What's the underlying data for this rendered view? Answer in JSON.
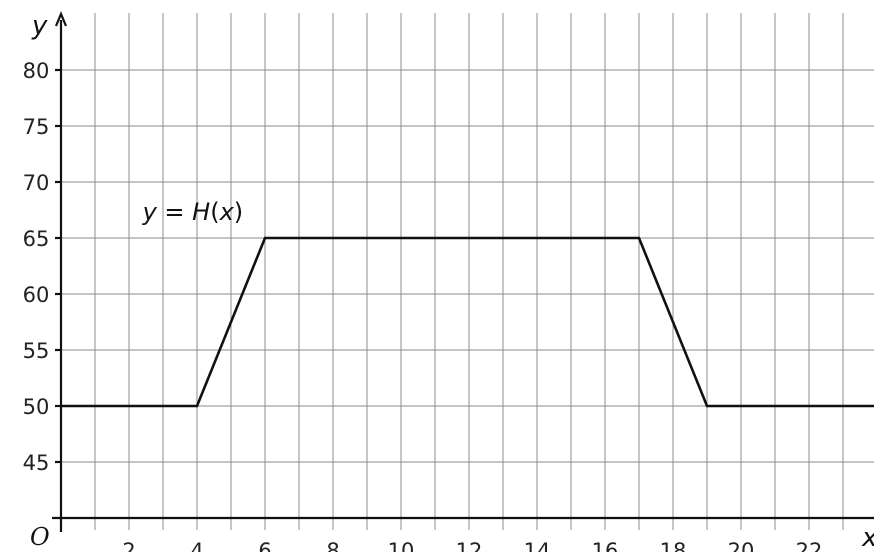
{
  "chart_data": {
    "type": "line",
    "xlabel": "x",
    "ylabel": "y",
    "origin_label": "O",
    "xlim": [
      0,
      24
    ],
    "ylim": [
      40,
      84
    ],
    "x_grid_step": 1,
    "y_grid_step": 5,
    "grid": true,
    "x_ticks": [
      2,
      4,
      6,
      8,
      10,
      12,
      14,
      16,
      18,
      20,
      22
    ],
    "y_ticks": [
      45,
      50,
      55,
      60,
      65,
      70,
      75,
      80
    ],
    "series": [
      {
        "x": [
          0,
          4,
          6,
          17,
          19,
          24
        ],
        "y": [
          50,
          50,
          65,
          65,
          50,
          50
        ]
      }
    ],
    "annotation": {
      "parts": [
        {
          "text": "y",
          "italic": true
        },
        {
          "text": " = ",
          "italic": false
        },
        {
          "text": "H",
          "italic": true
        },
        {
          "text": "(",
          "italic": false
        },
        {
          "text": "x",
          "italic": true
        },
        {
          "text": ")",
          "italic": false
        }
      ],
      "x": 2.4,
      "y": 66.6
    }
  }
}
